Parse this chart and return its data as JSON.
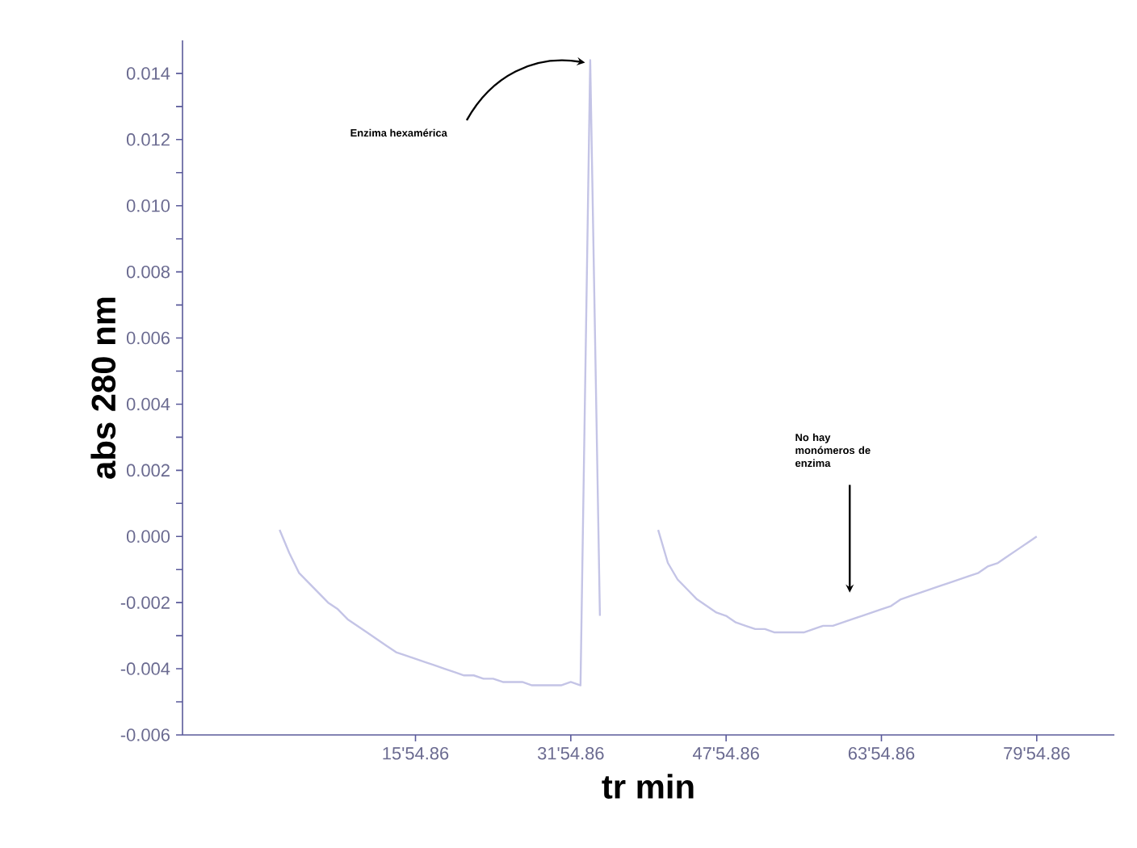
{
  "chart_data": {
    "type": "line",
    "xlabel": "tr min",
    "ylabel": "abs 280 nm",
    "color": "#c4c4e6",
    "categories": [
      null,
      null,
      null,
      null,
      null,
      null,
      null,
      null,
      null,
      null,
      null,
      null,
      null,
      null,
      null,
      null,
      null,
      null,
      null,
      null,
      null,
      null,
      null,
      null,
      "15'54.86",
      null,
      null,
      null,
      null,
      null,
      null,
      null,
      null,
      null,
      null,
      null,
      null,
      null,
      null,
      null,
      "31'54.86",
      null,
      null,
      null,
      null,
      null,
      null,
      null,
      null,
      null,
      null,
      null,
      null,
      null,
      null,
      null,
      "47'54.86",
      null,
      null,
      null,
      null,
      null,
      null,
      null,
      null,
      null,
      null,
      null,
      null,
      null,
      null,
      null,
      "63'54.86",
      null,
      null,
      null,
      null,
      null,
      null,
      null,
      null,
      null,
      null,
      null,
      null,
      null,
      null,
      null,
      "79'54.86",
      null,
      null,
      null,
      null,
      null,
      null,
      null,
      null
    ],
    "values": [
      null,
      null,
      null,
      null,
      null,
      null,
      null,
      null,
      null,
      null,
      0.0002,
      -0.0005,
      -0.0011,
      -0.0014,
      -0.0017,
      -0.002,
      -0.0022,
      -0.0025,
      -0.0027,
      -0.0029,
      -0.0031,
      -0.0033,
      -0.0035,
      -0.0036,
      -0.0037,
      -0.0038,
      -0.0039,
      -0.004,
      -0.0041,
      -0.0042,
      -0.0042,
      -0.0043,
      -0.0043,
      -0.0044,
      -0.0044,
      -0.0044,
      -0.0045,
      -0.0045,
      -0.0045,
      -0.0045,
      -0.0044,
      -0.0045,
      0.0144,
      -0.0024,
      null,
      null,
      null,
      null,
      null,
      0.0002,
      -0.0008,
      -0.0013,
      -0.0016,
      -0.0019,
      -0.0021,
      -0.0023,
      -0.0024,
      -0.0026,
      -0.0027,
      -0.0028,
      -0.0028,
      -0.0029,
      -0.0029,
      -0.0029,
      -0.0029,
      -0.0028,
      -0.0027,
      -0.0027,
      -0.0026,
      -0.0025,
      -0.0024,
      -0.0023,
      -0.0022,
      -0.0021,
      -0.0019,
      -0.0018,
      -0.0017,
      -0.0016,
      -0.0015,
      -0.0014,
      -0.0013,
      -0.0012,
      -0.0011,
      -0.0009,
      -0.0008,
      -0.0006,
      -0.0004,
      -0.0002,
      0.0,
      null,
      null,
      null,
      null,
      null,
      null,
      null,
      null
    ],
    "ylim": [
      -0.006,
      0.015
    ],
    "yticks": [
      {
        "value": -0.006,
        "label": "-0.006"
      },
      {
        "value": -0.005,
        "label": null
      },
      {
        "value": -0.004,
        "label": "-0.004"
      },
      {
        "value": -0.003,
        "label": null
      },
      {
        "value": -0.002,
        "label": "-0.002"
      },
      {
        "value": -0.001,
        "label": null
      },
      {
        "value": 0,
        "label": "0.000"
      },
      {
        "value": 0.001,
        "label": null
      },
      {
        "value": 0.002,
        "label": "0.002"
      },
      {
        "value": 0.003,
        "label": null
      },
      {
        "value": 0.004,
        "label": "0.004"
      },
      {
        "value": 0.005,
        "label": null
      },
      {
        "value": 0.006,
        "label": "0.006"
      },
      {
        "value": 0.007,
        "label": null
      },
      {
        "value": 0.008,
        "label": "0.008"
      },
      {
        "value": 0.009,
        "label": null
      },
      {
        "value": 0.01,
        "label": "0.010"
      },
      {
        "value": 0.011,
        "label": null
      },
      {
        "value": 0.012,
        "label": "0.012"
      },
      {
        "value": 0.013,
        "label": null
      },
      {
        "value": 0.014,
        "label": "0.014"
      }
    ],
    "annotations": [
      "Enzima hexamérica",
      "No hay monómeros de enzima"
    ]
  }
}
